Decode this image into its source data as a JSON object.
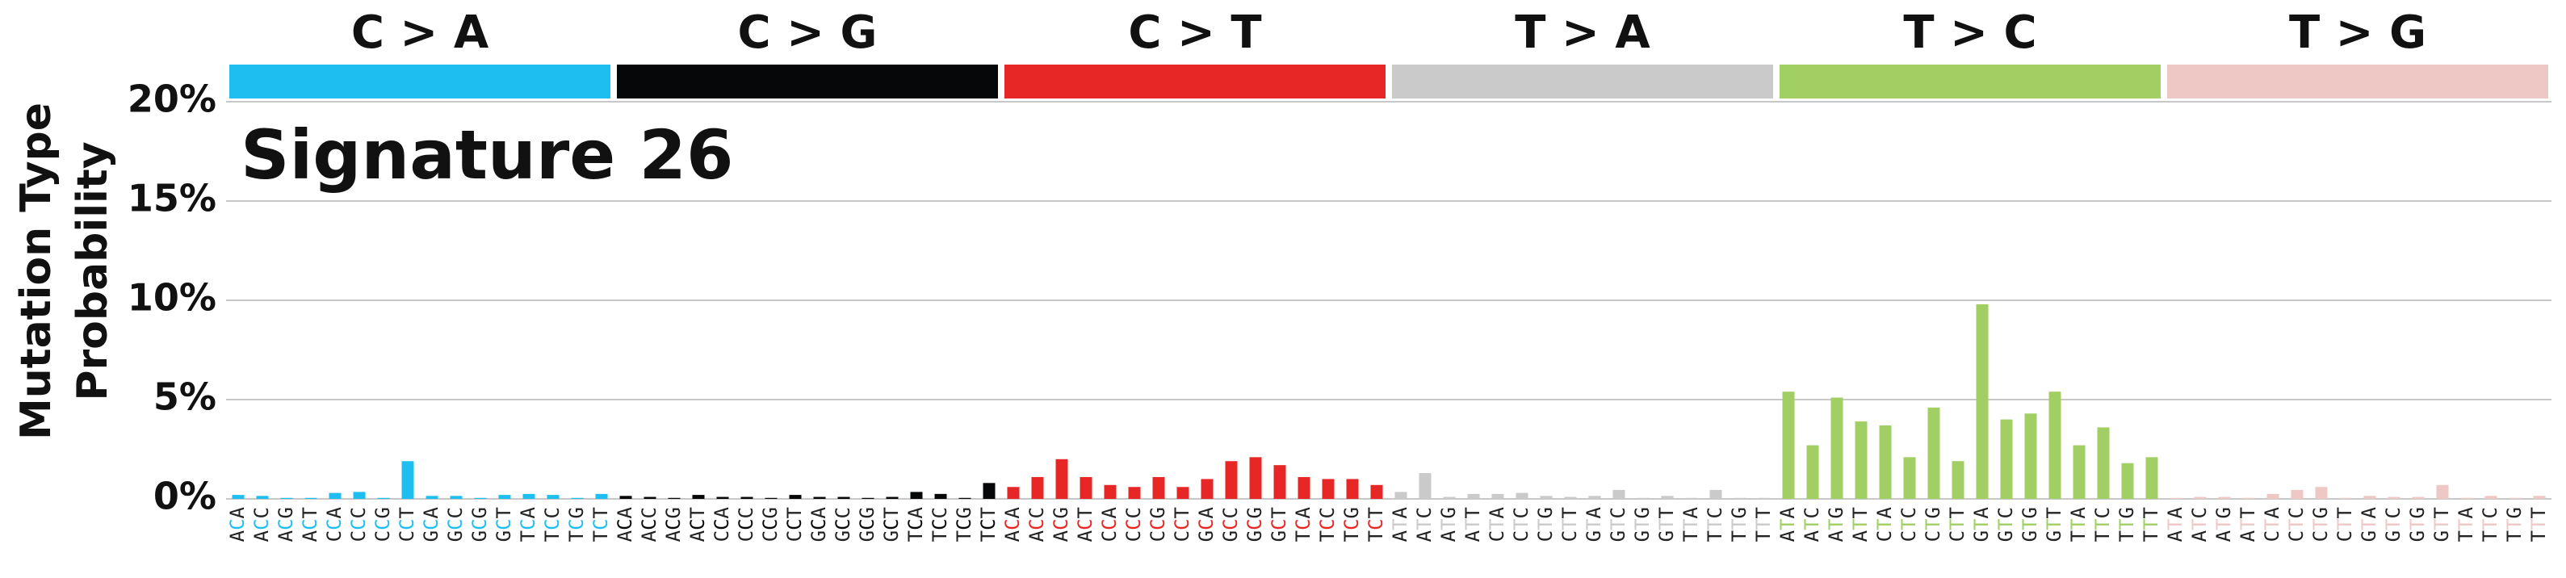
{
  "chart_data": {
    "type": "bar",
    "title": "Signature 26",
    "ylabel": [
      "Mutation Type",
      "Probability"
    ],
    "ylim": [
      0,
      20
    ],
    "yticks": [
      {
        "value": 0,
        "label": "0%"
      },
      {
        "value": 5,
        "label": "5%"
      },
      {
        "value": 10,
        "label": "10%"
      },
      {
        "value": 15,
        "label": "15%"
      },
      {
        "value": 20,
        "label": "20%"
      }
    ],
    "grid": true,
    "groups": [
      {
        "name": "C > A",
        "color": "#1ebff0",
        "categories": [
          "ACA",
          "ACC",
          "ACG",
          "ACT",
          "CCA",
          "CCC",
          "CCG",
          "CCT",
          "GCA",
          "GCC",
          "GCG",
          "GCT",
          "TCA",
          "TCC",
          "TCG",
          "TCT"
        ],
        "values": [
          0.2,
          0.15,
          0.05,
          0.05,
          0.3,
          0.35,
          0.05,
          1.9,
          0.15,
          0.15,
          0.05,
          0.2,
          0.25,
          0.2,
          0.05,
          0.25
        ]
      },
      {
        "name": "C > G",
        "color": "#050708",
        "categories": [
          "ACA",
          "ACC",
          "ACG",
          "ACT",
          "CCA",
          "CCC",
          "CCG",
          "CCT",
          "GCA",
          "GCC",
          "GCG",
          "GCT",
          "TCA",
          "TCC",
          "TCG",
          "TCT"
        ],
        "values": [
          0.15,
          0.1,
          0.05,
          0.2,
          0.1,
          0.1,
          0.05,
          0.2,
          0.1,
          0.1,
          0.05,
          0.1,
          0.35,
          0.25,
          0.05,
          0.8
        ]
      },
      {
        "name": "C > T",
        "color": "#e62725",
        "categories": [
          "ACA",
          "ACC",
          "ACG",
          "ACT",
          "CCA",
          "CCC",
          "CCG",
          "CCT",
          "GCA",
          "GCC",
          "GCG",
          "GCT",
          "TCA",
          "TCC",
          "TCG",
          "TCT"
        ],
        "values": [
          0.6,
          1.1,
          2.0,
          1.1,
          0.7,
          0.6,
          1.1,
          0.6,
          1.0,
          1.9,
          2.1,
          1.7,
          1.1,
          1.0,
          1.0,
          0.7
        ]
      },
      {
        "name": "T > A",
        "color": "#cbcacb",
        "categories": [
          "ATA",
          "ATC",
          "ATG",
          "ATT",
          "CTA",
          "CTC",
          "CTG",
          "CTT",
          "GTA",
          "GTC",
          "GTG",
          "GTT",
          "TTA",
          "TTC",
          "TTG",
          "TTT"
        ],
        "values": [
          0.35,
          1.3,
          0.1,
          0.25,
          0.25,
          0.3,
          0.15,
          0.1,
          0.15,
          0.45,
          0.05,
          0.15,
          0.05,
          0.45,
          0.05,
          0.05
        ]
      },
      {
        "name": "T > C",
        "color": "#a1cf64",
        "categories": [
          "ATA",
          "ATC",
          "ATG",
          "ATT",
          "CTA",
          "CTC",
          "CTG",
          "CTT",
          "GTA",
          "GTC",
          "GTG",
          "GTT",
          "TTA",
          "TTC",
          "TTG",
          "TTT"
        ],
        "values": [
          5.4,
          2.7,
          5.1,
          3.9,
          3.7,
          2.1,
          4.6,
          1.9,
          9.8,
          4.0,
          4.3,
          5.4,
          2.7,
          3.6,
          1.8,
          2.1
        ]
      },
      {
        "name": "T > G",
        "color": "#edc8c5",
        "categories": [
          "ATA",
          "ATC",
          "ATG",
          "ATT",
          "CTA",
          "CTC",
          "CTG",
          "CTT",
          "GTA",
          "GTC",
          "GTG",
          "GTT",
          "TTA",
          "TTC",
          "TTG",
          "TTT"
        ],
        "values": [
          0.05,
          0.1,
          0.1,
          0.05,
          0.25,
          0.45,
          0.6,
          0.05,
          0.15,
          0.1,
          0.1,
          0.7,
          0.05,
          0.15,
          0.05,
          0.15
        ]
      }
    ]
  }
}
